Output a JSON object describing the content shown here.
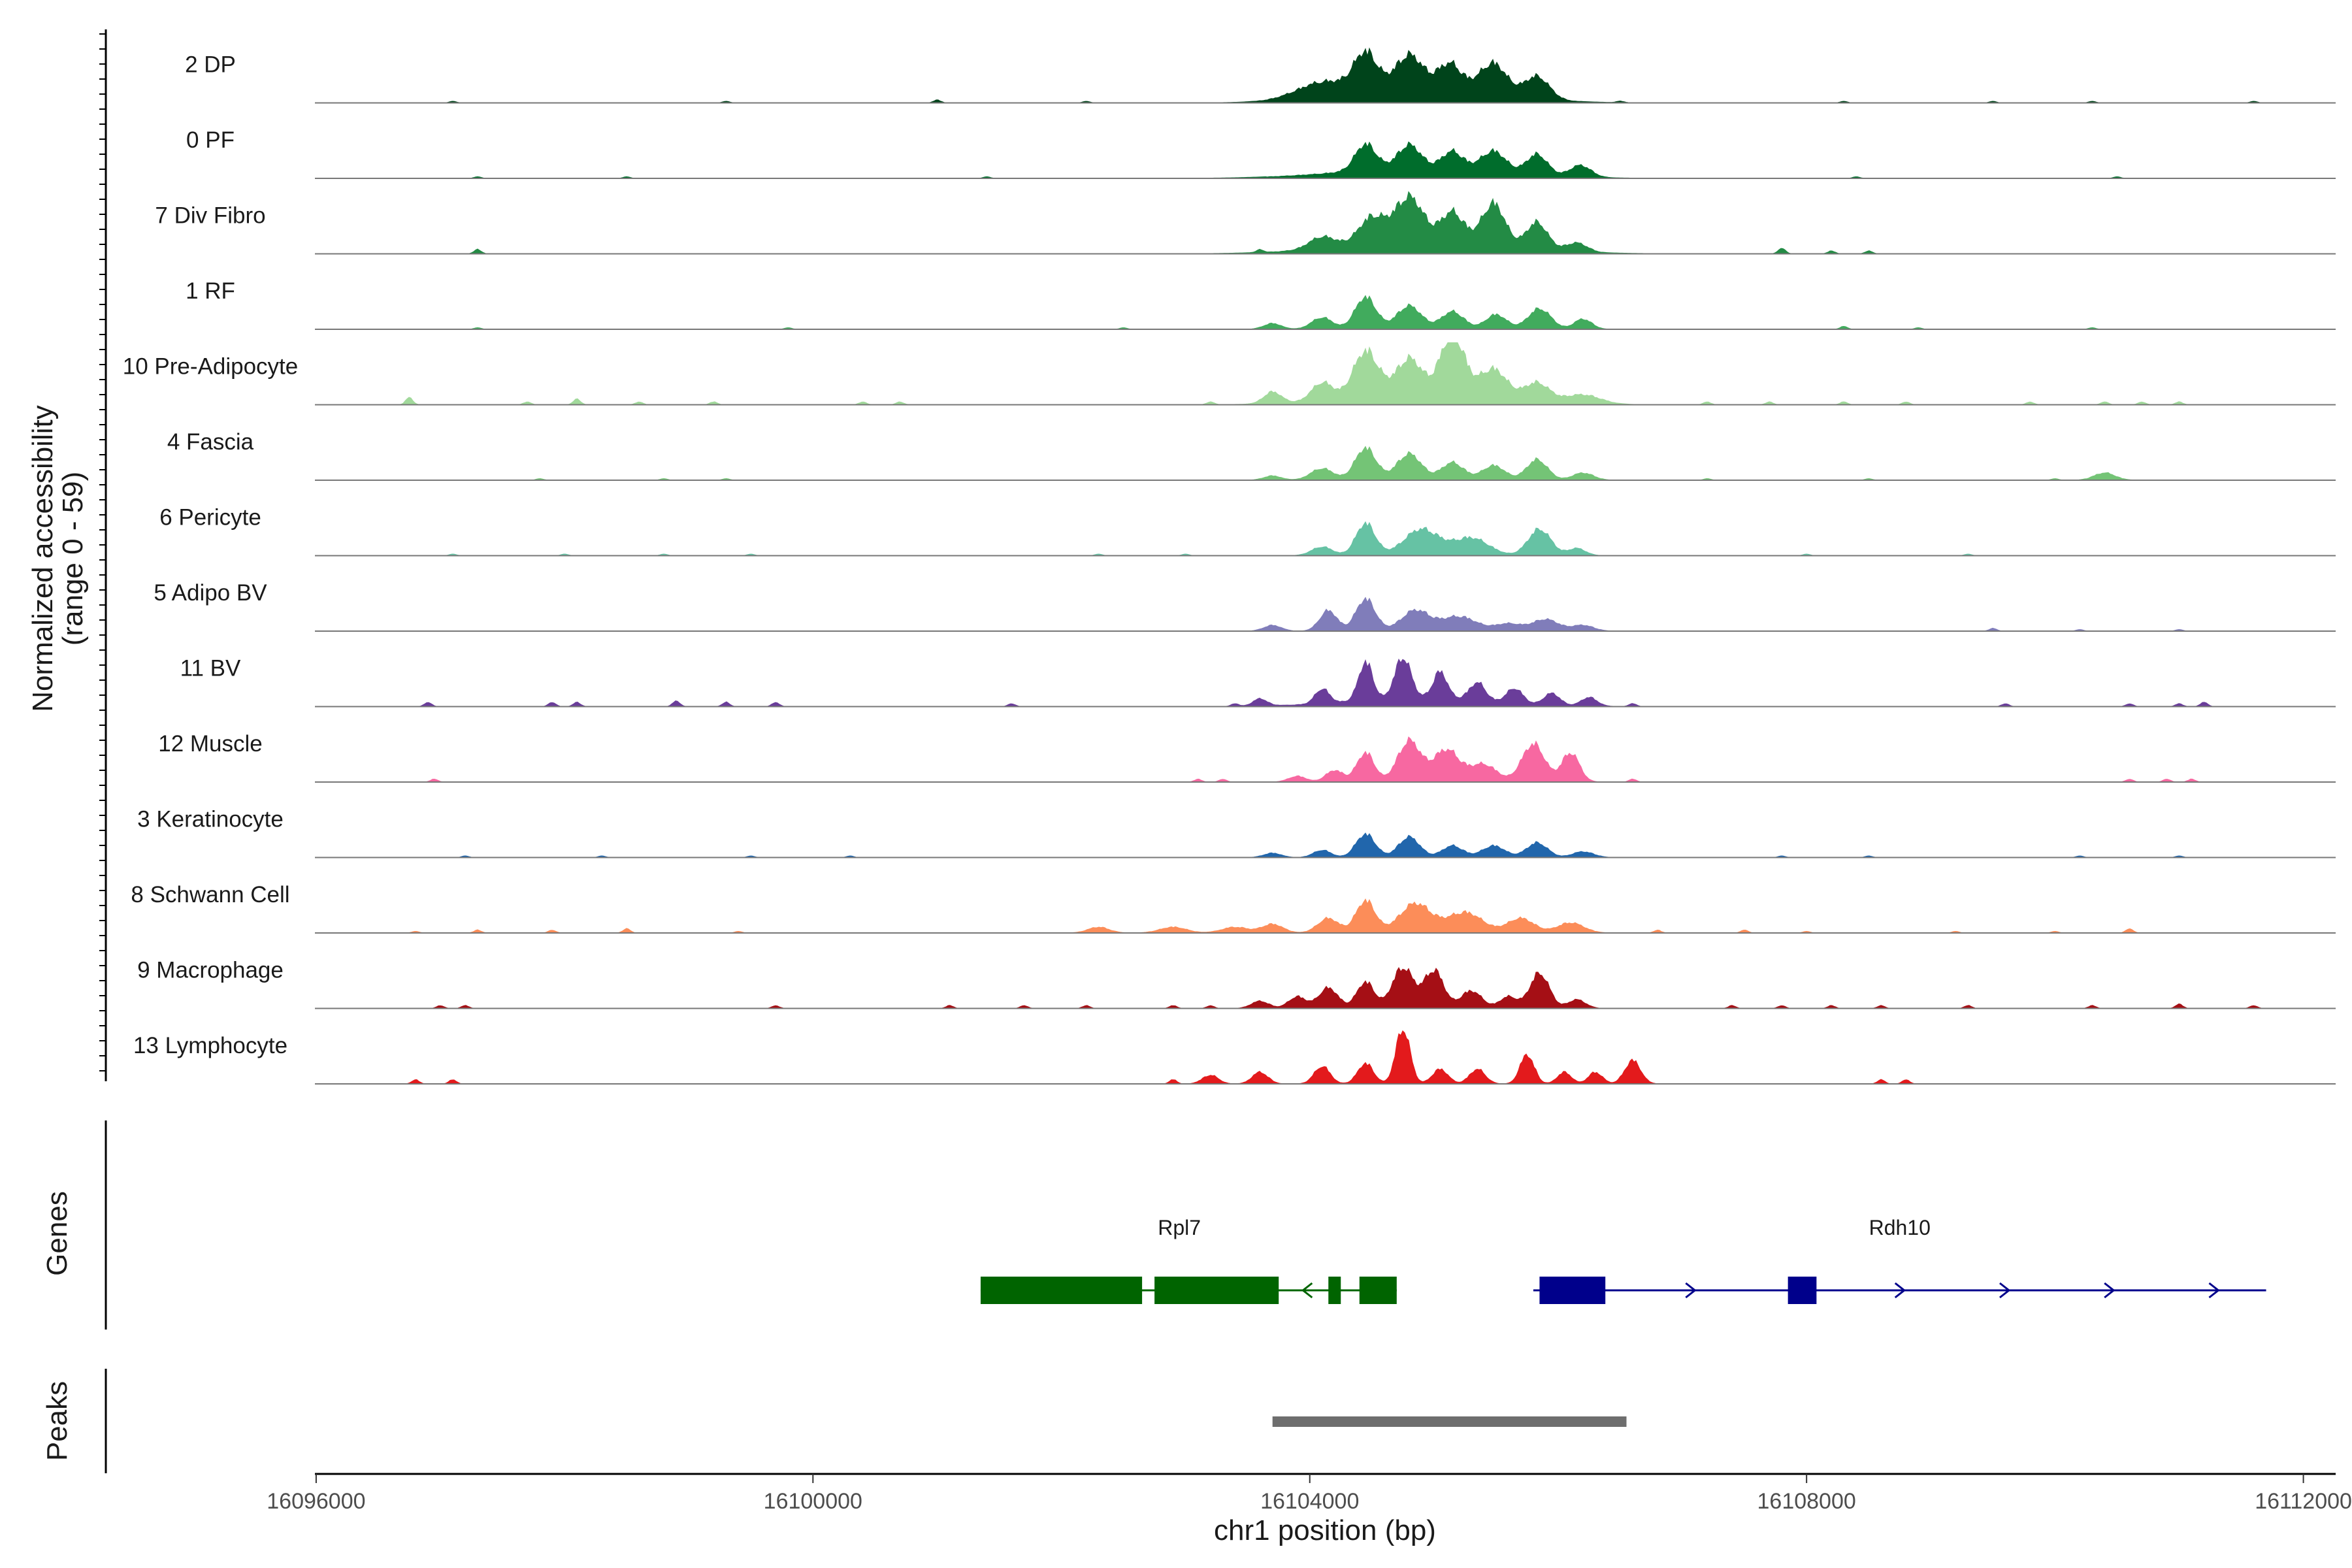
{
  "chart_data": {
    "type": "area",
    "title": "",
    "ylabel_line1": "Normalized accessibility",
    "ylabel_line2": "(range 0 - 59)",
    "ylim": [
      0,
      59
    ],
    "xlabel": "chr1 position (bp)",
    "xlim": [
      16095990,
      16112260
    ],
    "x_ticks": [
      16096000,
      16100000,
      16104000,
      16108000,
      16112000
    ],
    "x_tick_labels": [
      "16096000",
      "16100000",
      "16104000",
      "16108000",
      "16112000"
    ],
    "tracks_label": "Normalized accessibility",
    "genes_panel_label": "Genes",
    "peaks_panel_label": "Peaks",
    "series": [
      {
        "name": "2 DP",
        "color": "#00441b",
        "peaks": [
          [
            16104100,
            10,
            300
          ],
          [
            16104450,
            24,
            130
          ],
          [
            16104800,
            21,
            150
          ],
          [
            16105130,
            16,
            130
          ],
          [
            16105480,
            20,
            150
          ],
          [
            16105830,
            15,
            140
          ],
          [
            16104900,
            12,
            800
          ]
        ],
        "blips": [
          [
            16097100,
            1
          ],
          [
            16099300,
            1
          ],
          [
            16101000,
            2
          ],
          [
            16102200,
            1
          ],
          [
            16106500,
            1
          ],
          [
            16108300,
            1
          ],
          [
            16109500,
            1
          ],
          [
            16110300,
            1
          ],
          [
            16111600,
            1
          ]
        ]
      },
      {
        "name": "0 PF",
        "color": "#006d2c",
        "peaks": [
          [
            16104450,
            18,
            120
          ],
          [
            16104800,
            16,
            130
          ],
          [
            16105150,
            12,
            120
          ],
          [
            16105480,
            14,
            140
          ],
          [
            16105830,
            14,
            120
          ],
          [
            16106180,
            8,
            120
          ],
          [
            16104900,
            7,
            900
          ]
        ],
        "blips": [
          [
            16097300,
            1
          ],
          [
            16098500,
            1
          ],
          [
            16101400,
            1
          ],
          [
            16108400,
            1
          ],
          [
            16110500,
            1
          ]
        ]
      },
      {
        "name": "7 Div Fibro",
        "color": "#238b45",
        "peaks": [
          [
            16104100,
            8,
            150
          ],
          [
            16104500,
            18,
            150
          ],
          [
            16104800,
            30,
            160
          ],
          [
            16105150,
            20,
            130
          ],
          [
            16105480,
            28,
            130
          ],
          [
            16105830,
            18,
            120
          ],
          [
            16106150,
            6,
            120
          ],
          [
            16104950,
            9,
            900
          ]
        ],
        "blips": [
          [
            16097300,
            3
          ],
          [
            16103600,
            2
          ],
          [
            16107800,
            4
          ],
          [
            16108200,
            2
          ],
          [
            16108500,
            2
          ]
        ]
      },
      {
        "name": "1 RF",
        "color": "#41ab5d",
        "peaks": [
          [
            16103700,
            4,
            100
          ],
          [
            16104100,
            8,
            120
          ],
          [
            16104450,
            22,
            120
          ],
          [
            16104800,
            16,
            140
          ],
          [
            16105150,
            12,
            130
          ],
          [
            16105500,
            10,
            120
          ],
          [
            16105850,
            14,
            130
          ],
          [
            16106200,
            7,
            100
          ]
        ],
        "blips": [
          [
            16097300,
            1
          ],
          [
            16099800,
            1
          ],
          [
            16102500,
            1
          ],
          [
            16108300,
            2
          ],
          [
            16108900,
            1
          ],
          [
            16110300,
            1
          ]
        ]
      },
      {
        "name": "10 Pre-Adipocyte",
        "color": "#a1d99b",
        "peaks": [
          [
            16103700,
            8,
            100
          ],
          [
            16104100,
            12,
            120
          ],
          [
            16104450,
            30,
            140
          ],
          [
            16104800,
            22,
            140
          ],
          [
            16105150,
            40,
            130
          ],
          [
            16105480,
            18,
            150
          ],
          [
            16105830,
            12,
            140
          ],
          [
            16106200,
            6,
            200
          ],
          [
            16104950,
            10,
            800
          ]
        ],
        "blips": [
          [
            16096750,
            5
          ],
          [
            16097700,
            2
          ],
          [
            16098100,
            4
          ],
          [
            16098600,
            2
          ],
          [
            16099200,
            2
          ],
          [
            16100400,
            2
          ],
          [
            16100700,
            2
          ],
          [
            16103200,
            2
          ],
          [
            16107200,
            2
          ],
          [
            16107700,
            2
          ],
          [
            16108300,
            2
          ],
          [
            16108800,
            2
          ],
          [
            16109800,
            2
          ],
          [
            16110400,
            2
          ],
          [
            16110700,
            2
          ],
          [
            16111000,
            2
          ]
        ]
      },
      {
        "name": "4 Fascia",
        "color": "#74c476",
        "peaks": [
          [
            16103700,
            3,
            100
          ],
          [
            16104100,
            8,
            130
          ],
          [
            16104450,
            22,
            120
          ],
          [
            16104800,
            18,
            140
          ],
          [
            16105150,
            12,
            130
          ],
          [
            16105480,
            10,
            130
          ],
          [
            16105830,
            14,
            120
          ],
          [
            16106200,
            5,
            120
          ],
          [
            16110400,
            5,
            120
          ]
        ],
        "blips": [
          [
            16097800,
            1
          ],
          [
            16098800,
            1
          ],
          [
            16099300,
            1
          ],
          [
            16107200,
            1
          ],
          [
            16108500,
            1
          ],
          [
            16110000,
            1
          ]
        ]
      },
      {
        "name": "6 Pericyte",
        "color": "#66c2a4",
        "peaks": [
          [
            16104100,
            6,
            120
          ],
          [
            16104450,
            22,
            110
          ],
          [
            16104900,
            18,
            200
          ],
          [
            16105300,
            12,
            200
          ],
          [
            16105850,
            18,
            130
          ],
          [
            16106150,
            5,
            100
          ]
        ],
        "blips": [
          [
            16097100,
            1
          ],
          [
            16098000,
            1
          ],
          [
            16098800,
            1
          ],
          [
            16099500,
            1
          ],
          [
            16102300,
            1
          ],
          [
            16103000,
            1
          ],
          [
            16108000,
            1
          ],
          [
            16109300,
            1
          ]
        ]
      },
      {
        "name": "5 Adipo BV",
        "color": "#807dba",
        "peaks": [
          [
            16103700,
            4,
            100
          ],
          [
            16104150,
            14,
            100
          ],
          [
            16104450,
            22,
            110
          ],
          [
            16104850,
            14,
            160
          ],
          [
            16105200,
            10,
            200
          ],
          [
            16105600,
            5,
            150
          ],
          [
            16105900,
            8,
            150
          ],
          [
            16106200,
            4,
            120
          ]
        ],
        "blips": [
          [
            16109500,
            2
          ],
          [
            16110200,
            1
          ],
          [
            16111000,
            1
          ]
        ]
      },
      {
        "name": "11 BV",
        "color": "#6a3d9a",
        "peaks": [
          [
            16103600,
            5,
            80
          ],
          [
            16104100,
            10,
            80
          ],
          [
            16104450,
            26,
            80
          ],
          [
            16104750,
            28,
            90
          ],
          [
            16105050,
            18,
            80
          ],
          [
            16105350,
            12,
            90
          ],
          [
            16105650,
            10,
            90
          ],
          [
            16105950,
            8,
            90
          ],
          [
            16106250,
            6,
            90
          ],
          [
            16104900,
            6,
            800
          ]
        ],
        "blips": [
          [
            16096900,
            3
          ],
          [
            16097900,
            3
          ],
          [
            16098100,
            3
          ],
          [
            16098900,
            4
          ],
          [
            16099300,
            3
          ],
          [
            16099700,
            3
          ],
          [
            16101600,
            2
          ],
          [
            16103400,
            2
          ],
          [
            16106600,
            2
          ],
          [
            16109600,
            2
          ],
          [
            16110600,
            2
          ],
          [
            16111000,
            2
          ],
          [
            16111200,
            3
          ]
        ]
      },
      {
        "name": "12 Muscle",
        "color": "#f768a1",
        "peaks": [
          [
            16103900,
            4,
            100
          ],
          [
            16104200,
            8,
            100
          ],
          [
            16104450,
            20,
            100
          ],
          [
            16104800,
            28,
            130
          ],
          [
            16105100,
            22,
            150
          ],
          [
            16105400,
            12,
            150
          ],
          [
            16105800,
            26,
            130
          ],
          [
            16106100,
            20,
            100
          ]
        ],
        "blips": [
          [
            16096950,
            2
          ],
          [
            16103100,
            2
          ],
          [
            16103300,
            2
          ],
          [
            16106600,
            2
          ],
          [
            16110600,
            2
          ],
          [
            16110900,
            2
          ],
          [
            16111100,
            2
          ]
        ]
      },
      {
        "name": "3 Keratinocyte",
        "color": "#2166ac",
        "peaks": [
          [
            16103700,
            3,
            100
          ],
          [
            16104100,
            5,
            100
          ],
          [
            16104450,
            16,
            110
          ],
          [
            16104800,
            14,
            120
          ],
          [
            16105150,
            8,
            120
          ],
          [
            16105480,
            8,
            130
          ],
          [
            16105830,
            10,
            120
          ],
          [
            16106200,
            4,
            120
          ]
        ],
        "blips": [
          [
            16097200,
            1
          ],
          [
            16098300,
            1
          ],
          [
            16099500,
            1
          ],
          [
            16100300,
            1
          ],
          [
            16107800,
            1
          ],
          [
            16108500,
            1
          ],
          [
            16110200,
            1
          ],
          [
            16111000,
            1
          ]
        ]
      },
      {
        "name": "8 Schwann Cell",
        "color": "#fc8d59",
        "peaks": [
          [
            16102300,
            4,
            120
          ],
          [
            16102900,
            4,
            150
          ],
          [
            16103400,
            4,
            150
          ],
          [
            16103700,
            6,
            120
          ],
          [
            16104150,
            10,
            120
          ],
          [
            16104450,
            22,
            110
          ],
          [
            16104850,
            20,
            180
          ],
          [
            16105250,
            14,
            200
          ],
          [
            16105700,
            10,
            150
          ],
          [
            16106100,
            7,
            150
          ]
        ],
        "blips": [
          [
            16096800,
            1
          ],
          [
            16097300,
            2
          ],
          [
            16097900,
            2
          ],
          [
            16098500,
            3
          ],
          [
            16099400,
            1
          ],
          [
            16106800,
            2
          ],
          [
            16107500,
            2
          ],
          [
            16108000,
            1
          ],
          [
            16109200,
            1
          ],
          [
            16110000,
            1
          ],
          [
            16110600,
            3
          ]
        ]
      },
      {
        "name": "9 Macrophage",
        "color": "#a50f15",
        "peaks": [
          [
            16103600,
            5,
            100
          ],
          [
            16103900,
            8,
            100
          ],
          [
            16104150,
            14,
            110
          ],
          [
            16104450,
            18,
            100
          ],
          [
            16104750,
            28,
            120
          ],
          [
            16105000,
            26,
            110
          ],
          [
            16105300,
            12,
            120
          ],
          [
            16105600,
            8,
            100
          ],
          [
            16105850,
            24,
            110
          ],
          [
            16106150,
            6,
            100
          ]
        ],
        "blips": [
          [
            16097000,
            2
          ],
          [
            16097200,
            2
          ],
          [
            16099700,
            2
          ],
          [
            16101100,
            2
          ],
          [
            16101700,
            2
          ],
          [
            16102200,
            2
          ],
          [
            16102900,
            2
          ],
          [
            16103200,
            2
          ],
          [
            16107400,
            2
          ],
          [
            16107800,
            2
          ],
          [
            16108200,
            2
          ],
          [
            16108600,
            2
          ],
          [
            16109300,
            2
          ],
          [
            16110300,
            2
          ],
          [
            16111000,
            3
          ],
          [
            16111600,
            2
          ]
        ]
      },
      {
        "name": "13 Lymphocyte",
        "color": "#e31a1c",
        "peaks": [
          [
            16103200,
            6,
            90
          ],
          [
            16103600,
            8,
            90
          ],
          [
            16104100,
            12,
            90
          ],
          [
            16104450,
            14,
            90
          ],
          [
            16104750,
            38,
            80
          ],
          [
            16105050,
            10,
            90
          ],
          [
            16105350,
            10,
            90
          ],
          [
            16105750,
            20,
            80
          ],
          [
            16106050,
            8,
            80
          ],
          [
            16106300,
            8,
            80
          ],
          [
            16106600,
            16,
            90
          ]
        ],
        "blips": [
          [
            16096800,
            3
          ],
          [
            16097100,
            3
          ],
          [
            16102900,
            3
          ],
          [
            16108600,
            3
          ],
          [
            16108800,
            3
          ]
        ]
      }
    ],
    "genes": [
      {
        "name": "Rpl7",
        "strand": "-",
        "color": "#006400",
        "start": 16101350,
        "end": 16104700,
        "label_x": 16102950,
        "exons": [
          [
            16101350,
            16102650
          ],
          [
            16102750,
            16103750
          ],
          [
            16104150,
            16104250
          ],
          [
            16104400,
            16104700
          ]
        ]
      },
      {
        "name": "Rdh10",
        "strand": "+",
        "color": "#00008b",
        "start": 16105800,
        "end": 16111700,
        "label_x": 16108750,
        "exons": [
          [
            16105850,
            16106380
          ],
          [
            16107850,
            16108080
          ]
        ]
      }
    ],
    "peaks_track": [
      {
        "start": 16103700,
        "end": 16106550,
        "color": "#6e6e6e"
      }
    ]
  }
}
